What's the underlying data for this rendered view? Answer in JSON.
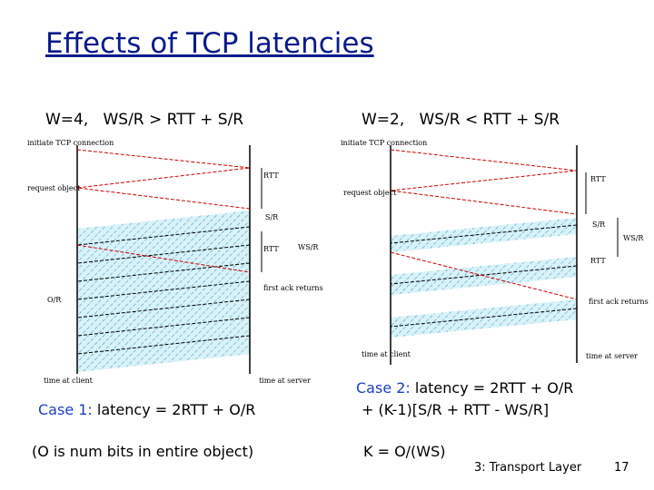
{
  "title": "Effects of TCP latencies",
  "left_panel": {
    "heading": "W=4,   WS/R > RTT + S/R",
    "labels": {
      "initiate": "initiate TCP connection",
      "rtt1": "RTT",
      "request": "request object",
      "sr": "S/R",
      "rtt2": "RTT",
      "wsr": "WS/R",
      "first_ack": "first ack returns",
      "or": "O/R",
      "time_client": "time at client",
      "time_server": "time at server"
    },
    "case_label": "Case 1:",
    "case_text": "latency = 2RTT + O/R",
    "note": "(O is num bits in entire object)"
  },
  "right_panel": {
    "heading": "W=2,   WS/R < RTT + S/R",
    "labels": {
      "initiate": "initiate TCP connection",
      "rtt1": "RTT",
      "request": "request object",
      "sr": "S/R",
      "wsr": "WS/R",
      "rtt2": "RTT",
      "first_ack": "first ack returns",
      "time_client": "time at client",
      "time_server": "time at server"
    },
    "case_label": "Case 2:",
    "case_text": "latency = 2RTT + O/R",
    "case_text_2": "+ (K-1)[S/R + RTT - WS/R]",
    "note": "K = O/(WS)"
  },
  "footer": {
    "section": "3: Transport Layer",
    "page": "17"
  }
}
